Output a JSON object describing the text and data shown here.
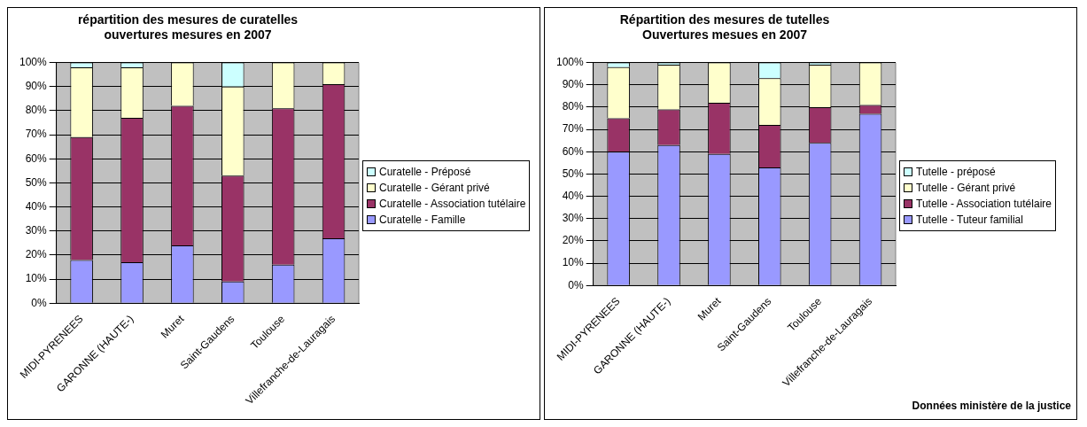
{
  "chart_data": [
    {
      "type": "bar",
      "title": "répartition des mesures de curatelles\nouvertures mesures en 2007",
      "stacked": true,
      "categories": [
        "MIDI-PYRENEES",
        "GARONNE (HAUTE-)",
        "Muret",
        "Saint-Gaudens",
        "Toulouse",
        "Villefranche-de-Lauragais"
      ],
      "series": [
        {
          "name": "Curatelle - Famille",
          "color": "#9999ff",
          "values": [
            18,
            17,
            24,
            9,
            16,
            27
          ]
        },
        {
          "name": "Curatelle - Association tutélaire",
          "color": "#993366",
          "values": [
            51,
            60,
            58,
            44,
            65,
            64
          ]
        },
        {
          "name": "Curatelle - Gérant privé",
          "color": "#ffffcc",
          "values": [
            29,
            21,
            18,
            37,
            19,
            9
          ]
        },
        {
          "name": "Curatelle - Préposé",
          "color": "#ccffff",
          "values": [
            2,
            2,
            0,
            10,
            0,
            0
          ]
        }
      ],
      "ylim": [
        0,
        100
      ],
      "yticks": [
        {
          "value": 0,
          "label": "0%"
        },
        {
          "value": 10,
          "label": "10%"
        },
        {
          "value": 20,
          "label": "20%"
        },
        {
          "value": 30,
          "label": "30%"
        },
        {
          "value": 40,
          "label": "40%"
        },
        {
          "value": 50,
          "label": "50%"
        },
        {
          "value": 60,
          "label": "60%"
        },
        {
          "value": 70,
          "label": "70%"
        },
        {
          "value": 80,
          "label": "80%"
        },
        {
          "value": 90,
          "label": "90%"
        },
        {
          "value": 100,
          "label": "100%"
        }
      ],
      "grid": "y",
      "legend": "right"
    },
    {
      "type": "bar",
      "title": "Répartition des mesures de tutelles\nOuvertures mesues en 2007",
      "stacked": true,
      "categories": [
        "MIDI-PYRENEES",
        "GARONNE (HAUTE-)",
        "Muret",
        "Saint-Gaudens",
        "Toulouse",
        "Villefranche-de-Lauragais"
      ],
      "series": [
        {
          "name": "Tutelle - Tuteur familial",
          "color": "#9999ff",
          "values": [
            60,
            63,
            59,
            53,
            64,
            77
          ]
        },
        {
          "name": "Tutelle - Association tutélaire",
          "color": "#993366",
          "values": [
            15,
            16,
            23,
            19,
            16,
            4
          ]
        },
        {
          "name": "Tutelle - Gérant privé",
          "color": "#ffffcc",
          "values": [
            23,
            20,
            18,
            21,
            19,
            19
          ]
        },
        {
          "name": "Tutelle - préposé",
          "color": "#ccffff",
          "values": [
            2,
            1,
            0,
            7,
            1,
            0
          ]
        }
      ],
      "ylim": [
        0,
        100
      ],
      "yticks": [
        {
          "value": 0,
          "label": "0%"
        },
        {
          "value": 10,
          "label": "10%"
        },
        {
          "value": 20,
          "label": "20%"
        },
        {
          "value": 30,
          "label": "30%"
        },
        {
          "value": 40,
          "label": "40%"
        },
        {
          "value": 50,
          "label": "50%"
        },
        {
          "value": 60,
          "label": "60%"
        },
        {
          "value": 70,
          "label": "70%"
        },
        {
          "value": 80,
          "label": "80%"
        },
        {
          "value": 90,
          "label": "90%"
        },
        {
          "value": 100,
          "label": "100%"
        }
      ],
      "grid": "y",
      "legend": "right",
      "annotations": [
        "Données ministère de la justice"
      ]
    }
  ]
}
